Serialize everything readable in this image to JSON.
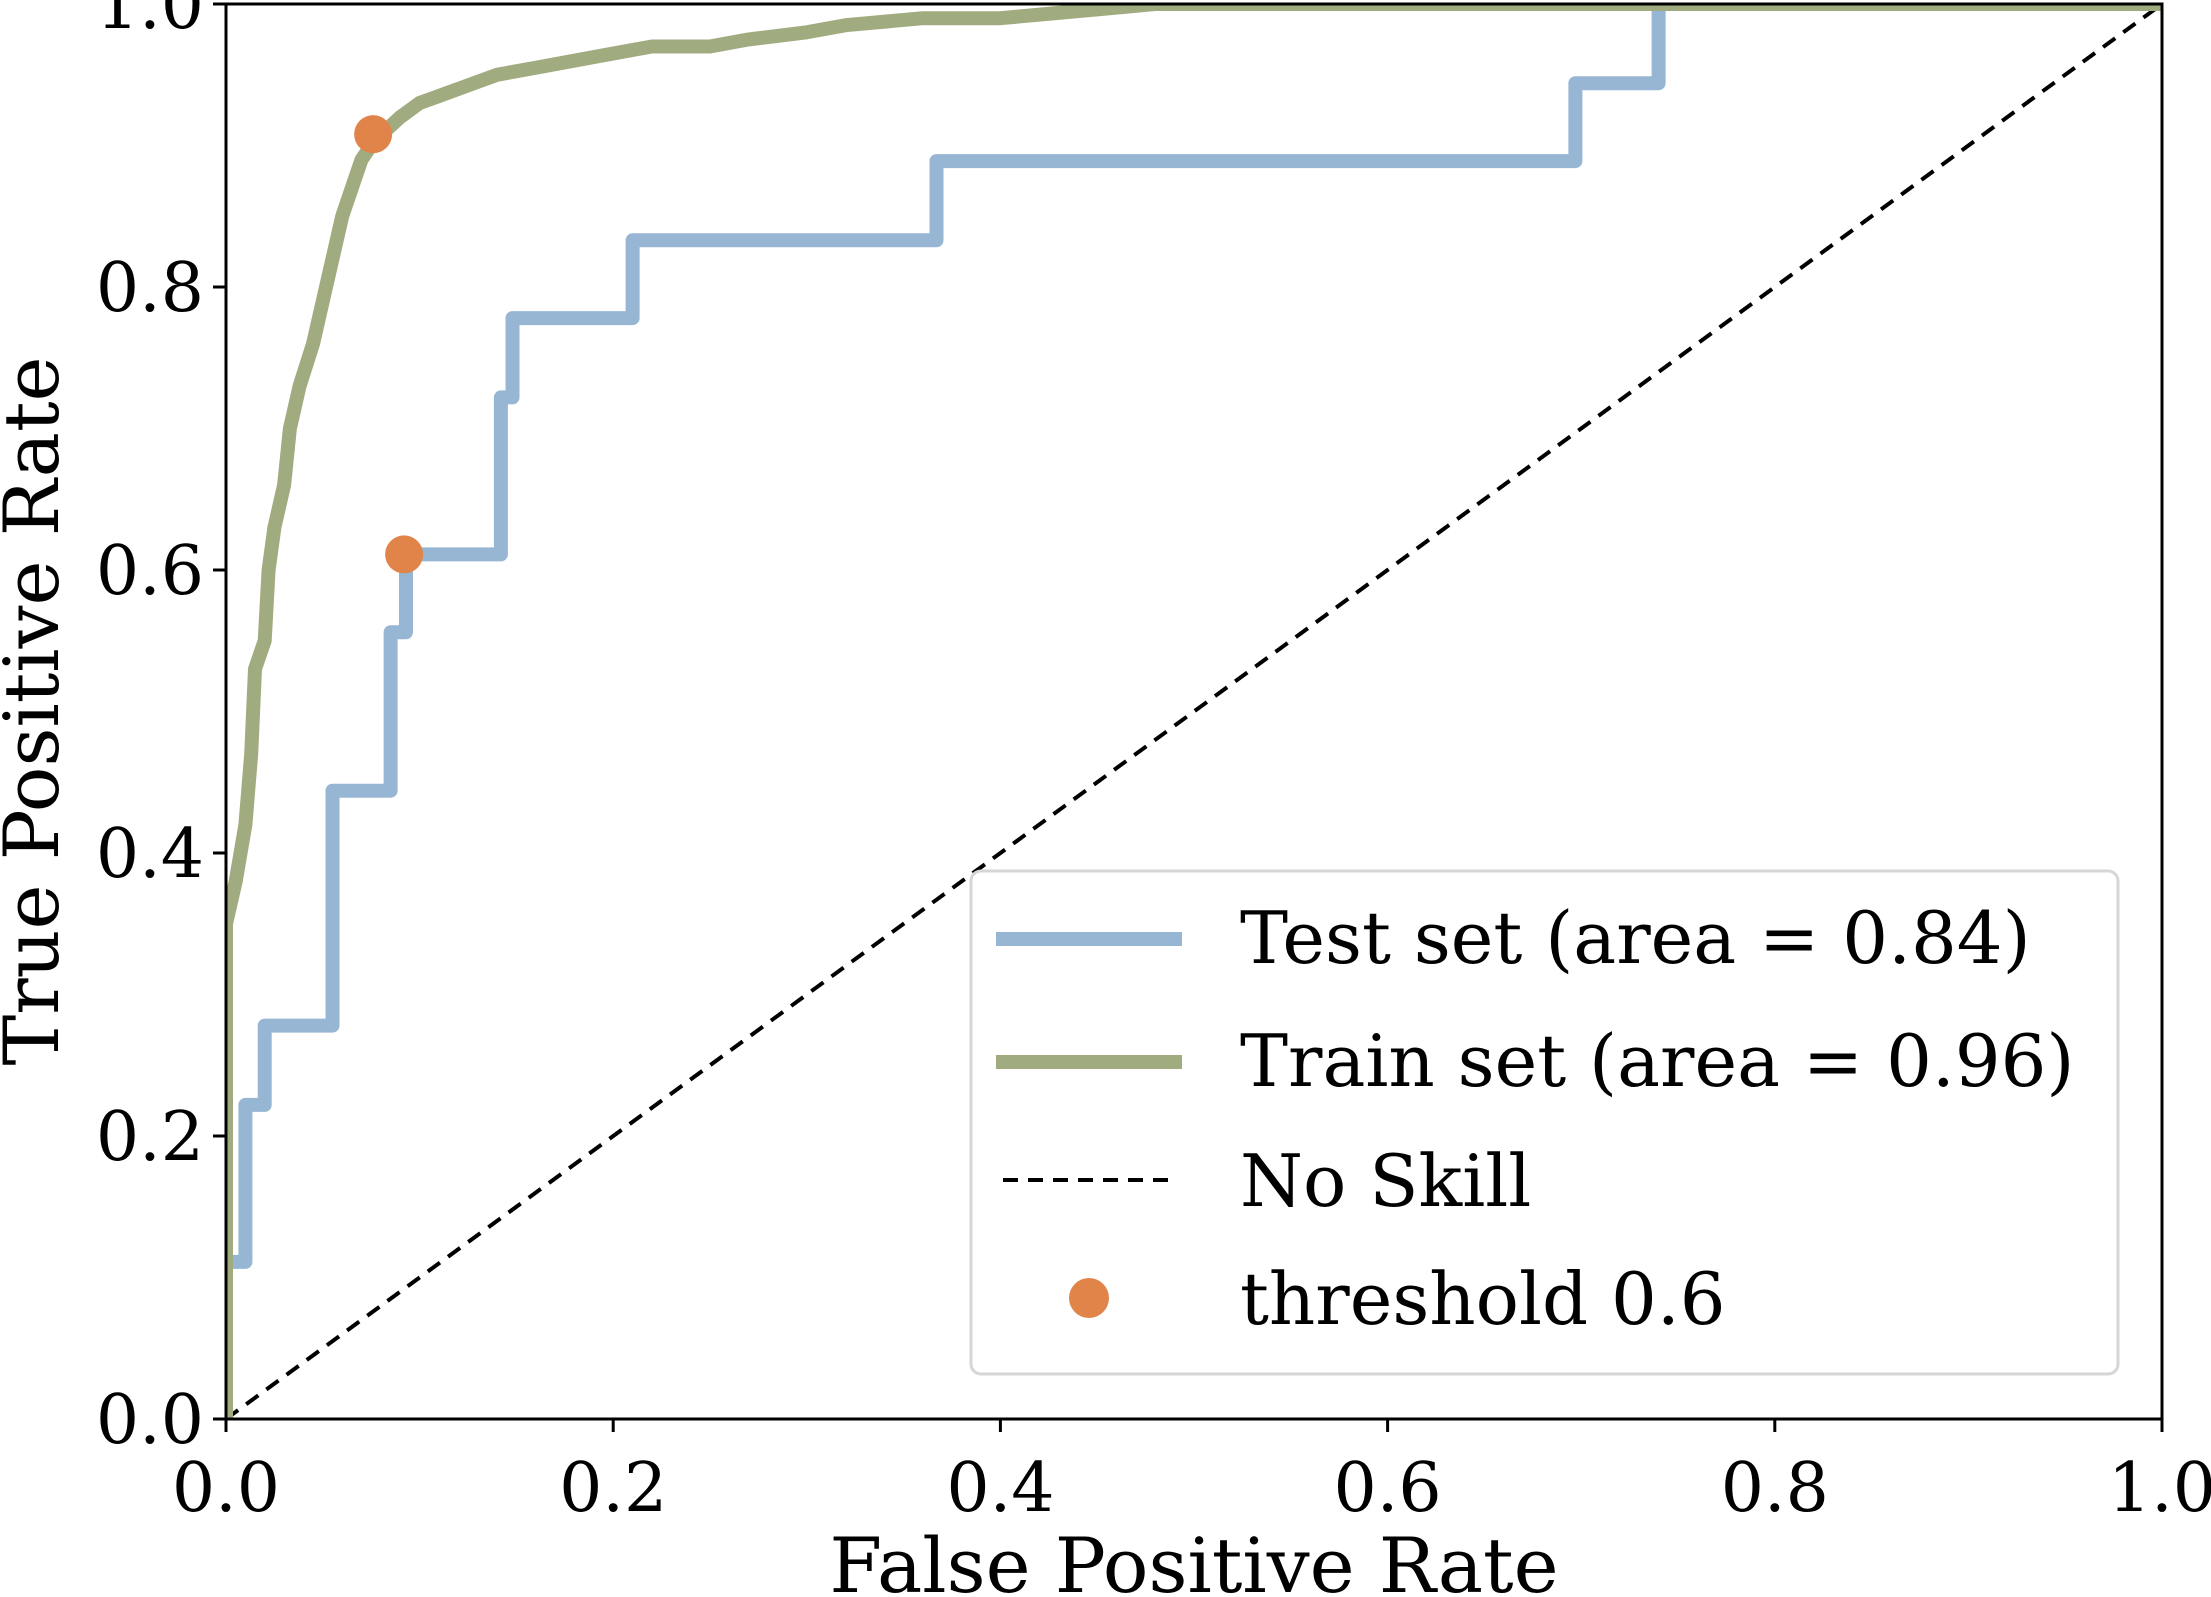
{
  "chart_data": {
    "type": "line",
    "title": "",
    "xlabel": "False Positive Rate",
    "ylabel": "True Positive Rate",
    "xlim": [
      0.0,
      1.0
    ],
    "ylim": [
      0.0,
      1.0
    ],
    "xticks": [
      "0.0",
      "0.2",
      "0.4",
      "0.6",
      "0.8",
      "1.0"
    ],
    "yticks": [
      "0.0",
      "0.2",
      "0.4",
      "0.6",
      "0.8",
      "1.0"
    ],
    "grid": false,
    "legend_position": "lower-right",
    "series": [
      {
        "name": "Test set (area = 0.84)",
        "kind": "step-line",
        "color": "#97b6d4",
        "x": [
          0.0,
          0.0,
          0.01,
          0.01,
          0.02,
          0.02,
          0.055,
          0.055,
          0.085,
          0.085,
          0.093,
          0.093,
          0.142,
          0.142,
          0.148,
          0.148,
          0.21,
          0.21,
          0.367,
          0.367,
          0.697,
          0.697,
          0.74,
          0.74,
          1.0
        ],
        "y": [
          0.0,
          0.111,
          0.111,
          0.222,
          0.222,
          0.278,
          0.278,
          0.444,
          0.444,
          0.556,
          0.556,
          0.611,
          0.611,
          0.722,
          0.722,
          0.778,
          0.778,
          0.833,
          0.833,
          0.889,
          0.889,
          0.944,
          0.944,
          1.0,
          1.0
        ]
      },
      {
        "name": "Train set (area = 0.96)",
        "kind": "step-line",
        "color": "#a1ab80",
        "x": [
          0.0,
          0.0,
          0.005,
          0.01,
          0.013,
          0.015,
          0.02,
          0.022,
          0.025,
          0.03,
          0.033,
          0.038,
          0.045,
          0.05,
          0.055,
          0.06,
          0.065,
          0.07,
          0.075,
          0.082,
          0.09,
          0.1,
          0.11,
          0.12,
          0.13,
          0.14,
          0.16,
          0.18,
          0.2,
          0.22,
          0.25,
          0.27,
          0.3,
          0.32,
          0.36,
          0.4,
          0.44,
          0.48,
          0.55,
          0.6,
          0.7,
          0.74,
          0.8,
          0.9,
          1.0
        ],
        "y": [
          0.0,
          0.35,
          0.38,
          0.42,
          0.47,
          0.53,
          0.55,
          0.6,
          0.63,
          0.66,
          0.7,
          0.73,
          0.76,
          0.79,
          0.82,
          0.85,
          0.87,
          0.89,
          0.9,
          0.91,
          0.92,
          0.93,
          0.935,
          0.94,
          0.945,
          0.95,
          0.955,
          0.96,
          0.965,
          0.97,
          0.97,
          0.975,
          0.98,
          0.985,
          0.99,
          0.99,
          0.995,
          1.0,
          1.0,
          1.0,
          1.0,
          1.0,
          1.0,
          1.0,
          1.0
        ]
      },
      {
        "name": "No Skill",
        "kind": "dashed-line",
        "color": "#000000",
        "x": [
          0.0,
          1.0
        ],
        "y": [
          0.0,
          1.0
        ]
      },
      {
        "name": "threshold 0.6",
        "kind": "scatter",
        "color": "#e0844a",
        "x": [
          0.076,
          0.092
        ],
        "y": [
          0.908,
          0.611
        ]
      }
    ]
  }
}
